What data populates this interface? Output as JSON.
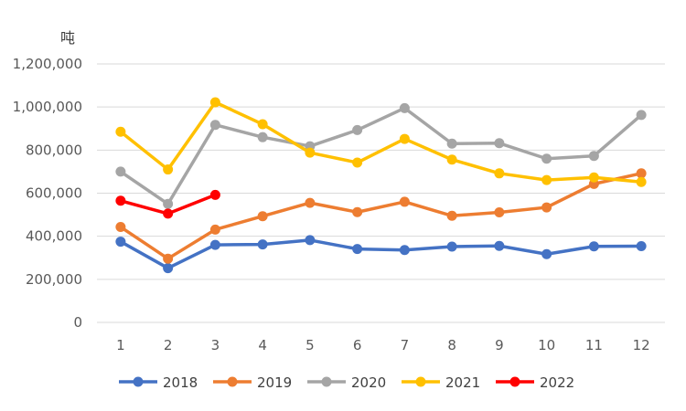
{
  "chart_data": {
    "type": "line",
    "ylabel": "吨",
    "ylim": [
      0,
      1200000
    ],
    "yticks": [
      0,
      200000,
      400000,
      600000,
      800000,
      1000000,
      1200000
    ],
    "ytick_labels": [
      "0",
      "200,000",
      "400,000",
      "600,000",
      "800,000",
      "1,000,000",
      "1,200,000"
    ],
    "x": [
      "1",
      "2",
      "3",
      "4",
      "5",
      "6",
      "7",
      "8",
      "9",
      "10",
      "11",
      "12"
    ],
    "grid": "horizontal",
    "legend_position": "bottom",
    "series": [
      {
        "name": "2018",
        "color": "#4472C4",
        "values": [
          375000,
          252000,
          360000,
          362000,
          382000,
          341000,
          336000,
          352000,
          355000,
          317000,
          353000,
          354000
        ]
      },
      {
        "name": "2019",
        "color": "#ED7D31",
        "values": [
          443000,
          296000,
          431000,
          493000,
          555000,
          512000,
          560000,
          495000,
          511000,
          534000,
          643000,
          692000
        ]
      },
      {
        "name": "2020",
        "color": "#A5A5A5",
        "values": [
          700000,
          550000,
          917000,
          860000,
          818000,
          893000,
          995000,
          830000,
          832000,
          760000,
          773000,
          963000
        ]
      },
      {
        "name": "2021",
        "color": "#FFC000",
        "values": [
          885000,
          710000,
          1022000,
          920000,
          788000,
          742000,
          852000,
          756000,
          692000,
          661000,
          673000,
          652000
        ]
      },
      {
        "name": "2022",
        "color": "#FF0000",
        "values": [
          565000,
          505000,
          592000,
          null,
          null,
          null,
          null,
          null,
          null,
          null,
          null,
          null
        ]
      }
    ]
  }
}
